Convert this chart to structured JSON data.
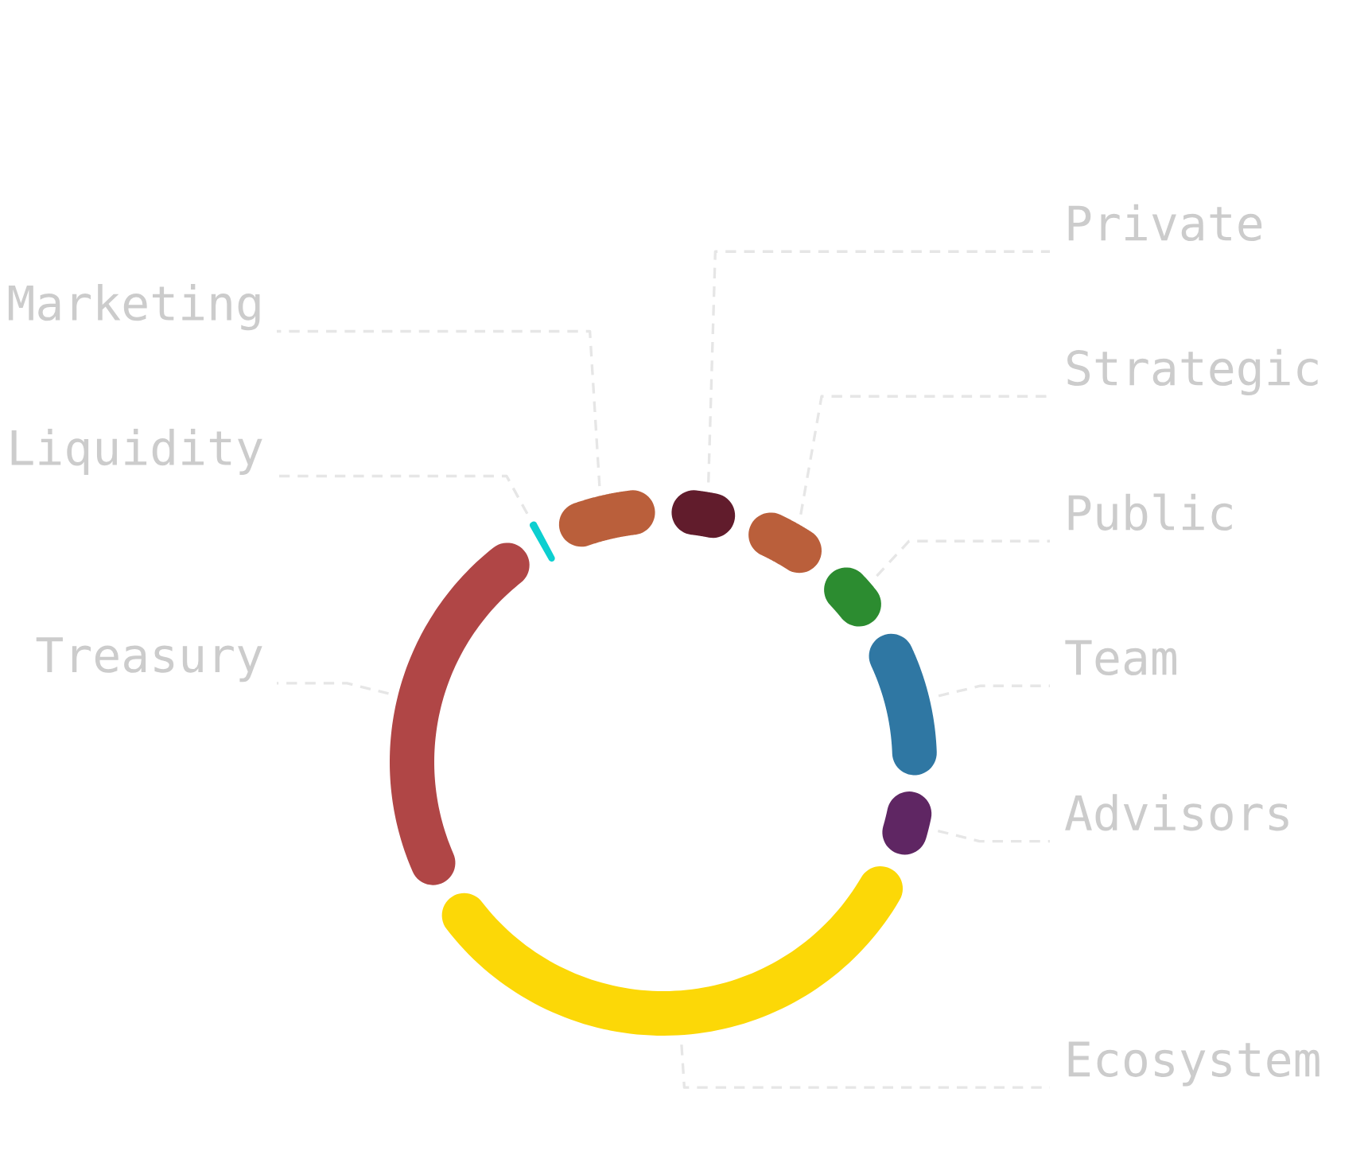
{
  "chart_data": {
    "type": "donut",
    "categories": [
      "Private",
      "Strategic",
      "Public",
      "Team",
      "Advisors",
      "Ecosystem",
      "Treasury",
      "Liquidity",
      "Marketing"
    ],
    "values": [
      4,
      5,
      4,
      10,
      4,
      39,
      27,
      0.5,
      6.5
    ],
    "colors": [
      "#611c2c",
      "#ba5f3b",
      "#2c8c30",
      "#2f77a3",
      "#5f2663",
      "#fcd807",
      "#b04646",
      "#0ccfd0",
      "#ba5f3b"
    ]
  }
}
